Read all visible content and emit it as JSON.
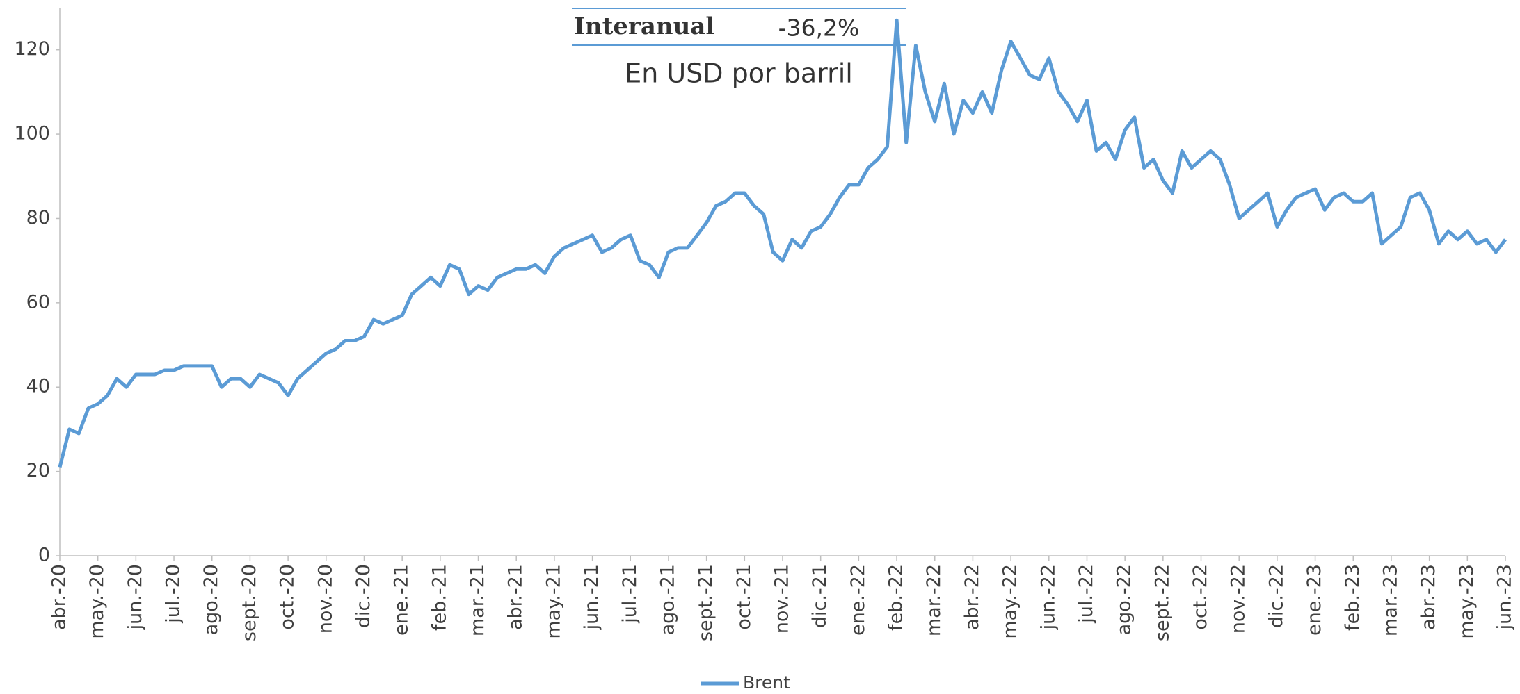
{
  "chart_data": {
    "type": "line",
    "annotations": {
      "label": "Interanual",
      "value": "-36,2%",
      "subtitle": "En USD por barril"
    },
    "categories": [
      "abr.-20",
      null,
      null,
      null,
      "may.-20",
      null,
      null,
      null,
      "jun.-20",
      null,
      null,
      null,
      "jul.-20",
      null,
      null,
      null,
      "ago.-20",
      null,
      null,
      null,
      "sept.-20",
      null,
      null,
      null,
      "oct.-20",
      null,
      null,
      null,
      "nov.-20",
      null,
      null,
      null,
      "dic.-20",
      null,
      null,
      null,
      "ene.-21",
      null,
      null,
      null,
      "feb.-21",
      null,
      null,
      null,
      "mar.-21",
      null,
      null,
      null,
      "abr.-21",
      null,
      null,
      null,
      "may.-21",
      null,
      null,
      null,
      "jun.-21",
      null,
      null,
      null,
      "jul.-21",
      null,
      null,
      null,
      "ago.-21",
      null,
      null,
      null,
      "sept.-21",
      null,
      null,
      null,
      "oct.-21",
      null,
      null,
      null,
      "nov.-21",
      null,
      null,
      null,
      "dic.-21",
      null,
      null,
      null,
      "ene.-22",
      null,
      null,
      null,
      "feb.-22",
      null,
      null,
      null,
      "mar.-22",
      null,
      null,
      null,
      "abr.-22",
      null,
      null,
      null,
      "may.-22",
      null,
      null,
      null,
      "jun.-22",
      null,
      null,
      null,
      "jul.-22",
      null,
      null,
      null,
      "ago.-22",
      null,
      null,
      null,
      "sept.-22",
      null,
      null,
      null,
      "oct.-22",
      null,
      null,
      null,
      "nov.-22",
      null,
      null,
      null,
      "dic.-22",
      null,
      null,
      null,
      "ene.-23",
      null,
      null,
      null,
      "feb.-23",
      null,
      null,
      null,
      "mar.-23",
      null,
      null,
      null,
      "abr.-23",
      null,
      null,
      null,
      "may.-23",
      null,
      null,
      null,
      "jun.-23"
    ],
    "series": [
      {
        "name": "Brent",
        "color": "#5b9bd5",
        "values": [
          21,
          30,
          29,
          35,
          36,
          38,
          42,
          40,
          43,
          43,
          43,
          44,
          44,
          45,
          45,
          45,
          45,
          40,
          42,
          42,
          40,
          43,
          42,
          41,
          38,
          42,
          44,
          46,
          48,
          49,
          51,
          51,
          52,
          56,
          55,
          56,
          57,
          62,
          64,
          66,
          64,
          69,
          68,
          62,
          64,
          63,
          66,
          67,
          68,
          68,
          69,
          67,
          71,
          73,
          74,
          75,
          76,
          72,
          73,
          75,
          76,
          70,
          69,
          66,
          72,
          73,
          73,
          76,
          79,
          83,
          84,
          86,
          86,
          83,
          81,
          72,
          70,
          75,
          73,
          77,
          78,
          81,
          85,
          88,
          88,
          92,
          94,
          97,
          127,
          98,
          121,
          110,
          103,
          112,
          100,
          108,
          105,
          110,
          105,
          115,
          122,
          118,
          114,
          113,
          118,
          110,
          107,
          103,
          108,
          96,
          98,
          94,
          101,
          104,
          92,
          94,
          89,
          86,
          96,
          92,
          94,
          96,
          94,
          88,
          80,
          82,
          84,
          86,
          78,
          82,
          85,
          86,
          87,
          82,
          85,
          86,
          84,
          84,
          86,
          74,
          76,
          78,
          85,
          86,
          82,
          74,
          77,
          75,
          77,
          74,
          75,
          72,
          75
        ]
      }
    ],
    "ylim": [
      0,
      130
    ],
    "yticks": [
      0,
      20,
      40,
      60,
      80,
      100,
      120
    ],
    "legend": "bottom"
  }
}
